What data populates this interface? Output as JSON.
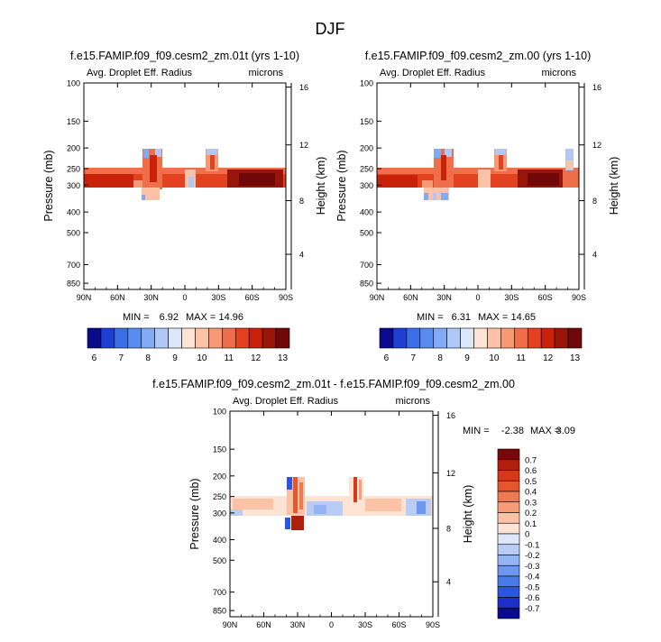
{
  "chart_data": {
    "type": "heatmap",
    "title": "DJF",
    "colors": {
      "abs": [
        "#0a0a8c",
        "#1e3fd2",
        "#3c6ee6",
        "#5a8cf0",
        "#82aaf5",
        "#afc8f5",
        "#dce8fa",
        "#fde3d4",
        "#fbc2a5",
        "#f69a76",
        "#ef6f4a",
        "#e2421f",
        "#c8220a",
        "#98150a",
        "#70080a"
      ],
      "diff": [
        "#0a0a8c",
        "#1c2fc8",
        "#2e55e0",
        "#4a7ae8",
        "#6e98f0",
        "#94b4f4",
        "#b8ccf6",
        "#dce8fa",
        "#fde3d4",
        "#fbc2a5",
        "#f79c77",
        "#f07a50",
        "#e6552c",
        "#d8381a",
        "#b01e0c",
        "#7a0808"
      ]
    },
    "panels": [
      {
        "id": "panel1",
        "title": "f.e15.FAMIP.f09_f09.cesm2_zm.01t (yrs 1-10)",
        "left_label": "Avg. Droplet Eff. Radius",
        "right_label": "microns",
        "ylabel": "Pressure (mb)",
        "y2label": "Height (km)",
        "xticks": [
          "90N",
          "60N",
          "30N",
          "0",
          "30S",
          "60S",
          "90S"
        ],
        "yticks": [
          "100",
          "150",
          "200",
          "250",
          "300",
          "400",
          "500",
          "700",
          "850"
        ],
        "y2ticks": [
          "16",
          "12",
          "8",
          "4"
        ],
        "min_label": "MIN =",
        "min_value": "6.92",
        "max_label": "MAX =",
        "max_value": "14.96",
        "colorbar_labels": [
          "6",
          "7",
          "8",
          "9",
          "10",
          "11",
          "12",
          "13"
        ]
      },
      {
        "id": "panel2",
        "title": "f.e15.FAMIP.f09_f09.cesm2_zm.00 (yrs 1-10)",
        "left_label": "Avg. Droplet Eff. Radius",
        "right_label": "microns",
        "ylabel": "Pressure (mb)",
        "y2label": "Height (km)",
        "xticks": [
          "90N",
          "60N",
          "30N",
          "0",
          "30S",
          "60S",
          "90S"
        ],
        "yticks": [
          "100",
          "150",
          "200",
          "250",
          "300",
          "400",
          "500",
          "700",
          "850"
        ],
        "y2ticks": [
          "16",
          "12",
          "8",
          "4"
        ],
        "min_label": "MIN =",
        "min_value": "6.31",
        "max_label": "MAX =",
        "max_value": "14.65",
        "colorbar_labels": [
          "6",
          "7",
          "8",
          "9",
          "10",
          "11",
          "12",
          "13"
        ]
      },
      {
        "id": "panel3",
        "title": "f.e15.FAMIP.f09_f09.cesm2_zm.01t - f.e15.FAMIP.f09_f09.cesm2_zm.00",
        "left_label": "Avg. Droplet Eff. Radius",
        "right_label": "microns",
        "ylabel": "Pressure (mb)",
        "y2label": "Height (km)",
        "xticks": [
          "90N",
          "60N",
          "30N",
          "0",
          "30S",
          "60S",
          "90S"
        ],
        "yticks": [
          "100",
          "150",
          "200",
          "250",
          "300",
          "400",
          "500",
          "700",
          "850"
        ],
        "y2ticks": [
          "16",
          "12",
          "8",
          "4"
        ],
        "min_label": "MIN =",
        "min_value": "-2.38",
        "max_label": "MAX =",
        "max_value": "3.09",
        "colorbar_labels": [
          "0.7",
          "0.6",
          "0.5",
          "0.4",
          "0.3",
          "0.2",
          "0.1",
          "0",
          "-0.1",
          "-0.2",
          "-0.3",
          "-0.4",
          "-0.5",
          "-0.6",
          "-0.7"
        ]
      }
    ]
  }
}
